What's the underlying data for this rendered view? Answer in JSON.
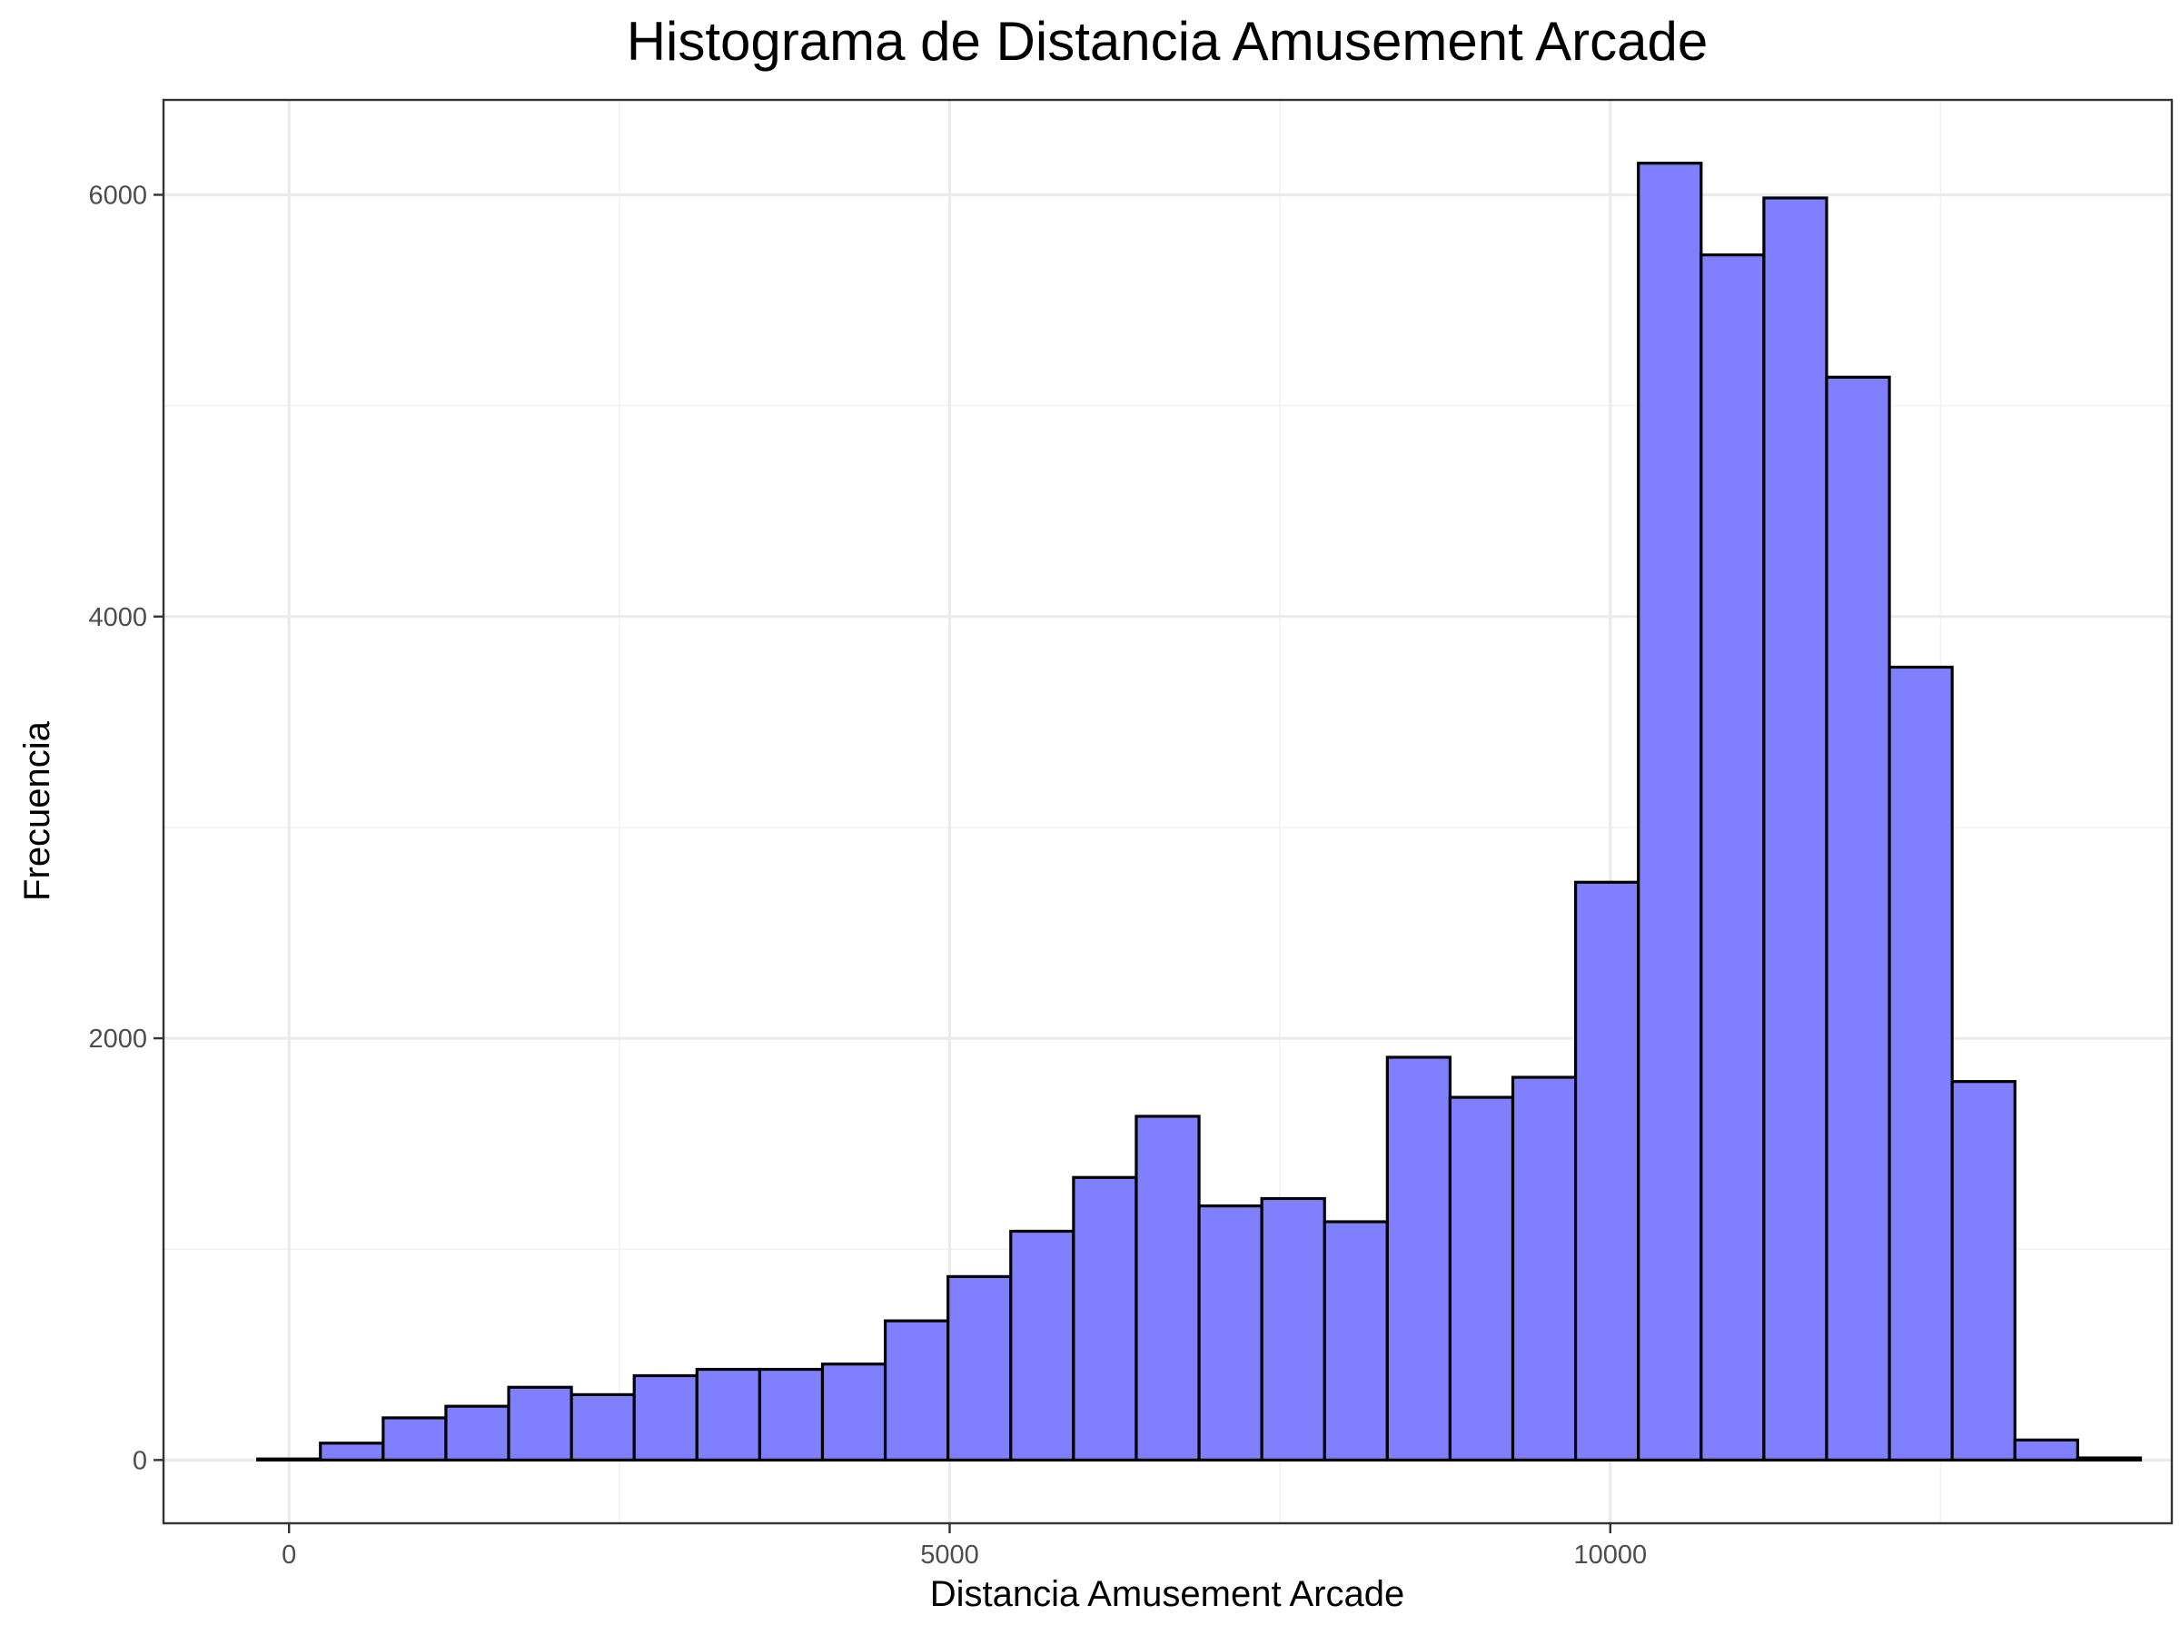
{
  "chart_data": {
    "type": "bar",
    "title": "Histograma de Distancia Amusement Arcade",
    "xlabel": "Distancia Amusement Arcade",
    "ylabel": "Frecuencia",
    "bin_width": 475,
    "bin_centers": [
      0,
      475,
      950,
      1425,
      1900,
      2375,
      2850,
      3325,
      3800,
      4275,
      4750,
      5225,
      5700,
      6175,
      6650,
      7125,
      7600,
      8075,
      8550,
      9025,
      9500,
      9975,
      10450,
      10925,
      11400,
      11875,
      12350,
      12825,
      13300,
      13775
    ],
    "values": [
      5,
      80,
      200,
      255,
      345,
      310,
      400,
      430,
      430,
      455,
      660,
      870,
      1085,
      1340,
      1630,
      1205,
      1240,
      1130,
      1910,
      1720,
      1815,
      2740,
      6150,
      5715,
      5985,
      5135,
      3760,
      1795,
      95,
      10
    ],
    "xlim": [
      -950,
      14250
    ],
    "ylim": [
      -300,
      6450
    ],
    "x_ticks": [
      0,
      5000,
      10000
    ],
    "x_tick_labels": [
      "0",
      "5000",
      "10000"
    ],
    "y_ticks": [
      0,
      2000,
      4000,
      6000
    ],
    "y_tick_labels": [
      "0",
      "2000",
      "4000",
      "6000"
    ],
    "grid": true,
    "legend": "none",
    "colors": {
      "bar_fill": "#8080ff",
      "bar_stroke": "#000000",
      "background": "#ffffff"
    }
  }
}
